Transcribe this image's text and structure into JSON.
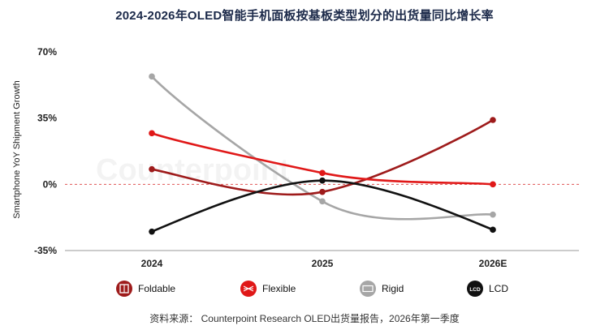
{
  "title": "2024-2026年OLED智能手机面板按基板类型划分的出货量同比增长率",
  "source": "资料来源： Counterpoint Research OLED出货量报告，2026年第一季度",
  "watermark": "Counterpoint",
  "colors": {
    "Foldable": "#9e1b1b",
    "Flexible": "#e01818",
    "Rigid": "#a6a6a6",
    "LCD": "#111111",
    "zero_line": "#e05555",
    "axis": "#999999"
  },
  "chart_data": {
    "type": "line",
    "title": "2024-2026年OLED智能手机面板按基板类型划分的出货量同比增长率",
    "xlabel": "",
    "ylabel": "Smartphone YoY Shipment Growth",
    "categories": [
      "2024",
      "2025",
      "2026E"
    ],
    "yticks": [
      70,
      35,
      0,
      -35
    ],
    "ytick_labels": [
      "70%",
      "35%",
      "0%",
      "-35%"
    ],
    "ylim": [
      -35,
      70
    ],
    "grid": false,
    "legend_position": "bottom",
    "series": [
      {
        "name": "Foldable",
        "values": [
          8,
          -4,
          34
        ],
        "icon": "foldable-phone-icon"
      },
      {
        "name": "Flexible",
        "values": [
          27,
          6,
          0
        ],
        "icon": "flexible-panel-icon"
      },
      {
        "name": "Rigid",
        "values": [
          57,
          -9,
          -16
        ],
        "icon": "rigid-panel-icon"
      },
      {
        "name": "LCD",
        "values": [
          -25,
          2,
          -24
        ],
        "icon": "lcd-icon",
        "icon_text": "LCD"
      }
    ]
  }
}
